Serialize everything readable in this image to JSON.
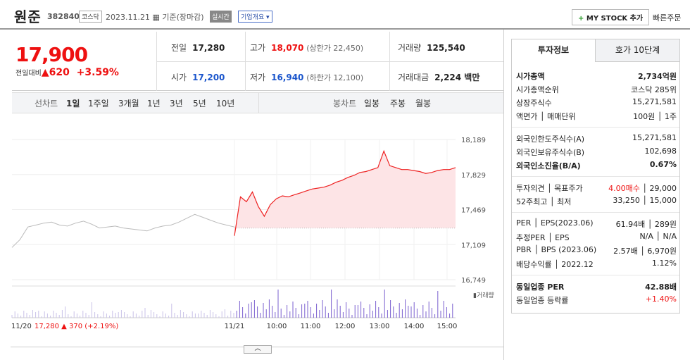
{
  "header": {
    "name": "원준",
    "code": "382840",
    "market": "코스닥",
    "date": "2023.11.21",
    "date_suffix": "기준(장마감)",
    "live_label": "실시간",
    "overview_label": "기업개요 ▾",
    "mystock_plus": "+",
    "mystock_label": "MY STOCK 추가",
    "quick_label": "빠른주문"
  },
  "price": {
    "current": "17,900",
    "change_label": "전일대비",
    "change_arrow": "▲",
    "change": "620",
    "change_pct": "+3.59%",
    "prev_label": "전일",
    "prev": "17,280",
    "open_label": "시가",
    "open": "17,200",
    "high_label": "고가",
    "high": "18,070",
    "upper_limit": "(상한가 22,450)",
    "low_label": "저가",
    "low": "16,940",
    "lower_limit": "(하한가 12,100)",
    "volume_label": "거래량",
    "volume": "125,540",
    "amount_label": "거래대금",
    "amount": "2,224 백만"
  },
  "tabs": {
    "line_label": "선차트",
    "line": [
      "1일",
      "1주일",
      "3개월",
      "1년",
      "3년",
      "5년",
      "10년"
    ],
    "candle_label": "봉차트",
    "candle": [
      "일봉",
      "주봉",
      "월봉"
    ]
  },
  "chart_data": {
    "type": "line",
    "ylim": [
      16749,
      18189
    ],
    "y_ticks": [
      "18,189",
      "17,829",
      "17,469",
      "17,109",
      "16,749"
    ],
    "x_ticks": [
      "11/21",
      "10:00",
      "11:00",
      "12:00",
      "13:00",
      "14:00",
      "15:00"
    ],
    "prev_close": 17280,
    "series": [
      {
        "segment": "previous-day",
        "values": [
          17080,
          17160,
          17290,
          17310,
          17330,
          17340,
          17310,
          17300,
          17330,
          17350,
          17320,
          17280,
          17290,
          17300,
          17280,
          17270,
          17260,
          17250,
          17280,
          17300,
          17310,
          17340,
          17380,
          17420,
          17390,
          17360,
          17330,
          17310,
          17290
        ]
      },
      {
        "segment": "today",
        "values": [
          17200,
          17600,
          17550,
          17650,
          17500,
          17400,
          17520,
          17580,
          17610,
          17600,
          17620,
          17640,
          17660,
          17680,
          17690,
          17700,
          17720,
          17750,
          17770,
          17800,
          17820,
          17850,
          17860,
          17880,
          17900,
          18070,
          17920,
          17900,
          17880,
          17880,
          17870,
          17860,
          17840,
          17850,
          17870,
          17880,
          17880,
          17900
        ]
      }
    ],
    "volume_label": "거래량",
    "bottom_left": {
      "date": "11/20",
      "price": "17,280",
      "arrow": "▲",
      "change": "370",
      "pct": "(+2.19%)"
    }
  },
  "panel": {
    "tab_active": "투자정보",
    "tab_other": "호가 10단계",
    "rows": [
      {
        "l": "시가총액",
        "r": "2,734억원"
      },
      {
        "l": "시가총액순위",
        "r": "코스닥 285위"
      },
      {
        "l": "상장주식수",
        "r": "15,271,581"
      },
      {
        "l": "액면가 │ 매매단위",
        "r": "100원 │ 1주"
      },
      {
        "l": "외국인한도주식수(A)",
        "r": "15,271,581"
      },
      {
        "l": "외국인보유주식수(B)",
        "r": "102,698"
      },
      {
        "l": "외국인소진율(B/A)",
        "r": "0.67%"
      },
      {
        "l": "투자의견 │ 목표주가",
        "r1": "4.00매수",
        "r2": " │ 29,000"
      },
      {
        "l": "52주최고 │ 최저",
        "r": "33,250 │ 15,000"
      },
      {
        "l": "PER │ EPS(2023.06)",
        "r": "61.94배 │ 289원"
      },
      {
        "l": "추정PER │ EPS",
        "r": "N/A │ N/A"
      },
      {
        "l": "PBR │ BPS (2023.06)",
        "r": "2.57배 │ 6,970원"
      },
      {
        "l": "배당수익률 │ 2022.12",
        "r": "1.12%"
      },
      {
        "l": "동일업종 PER",
        "r": "42.88배"
      },
      {
        "l": "동일업종 등락률",
        "r": "+1.40%"
      }
    ]
  }
}
